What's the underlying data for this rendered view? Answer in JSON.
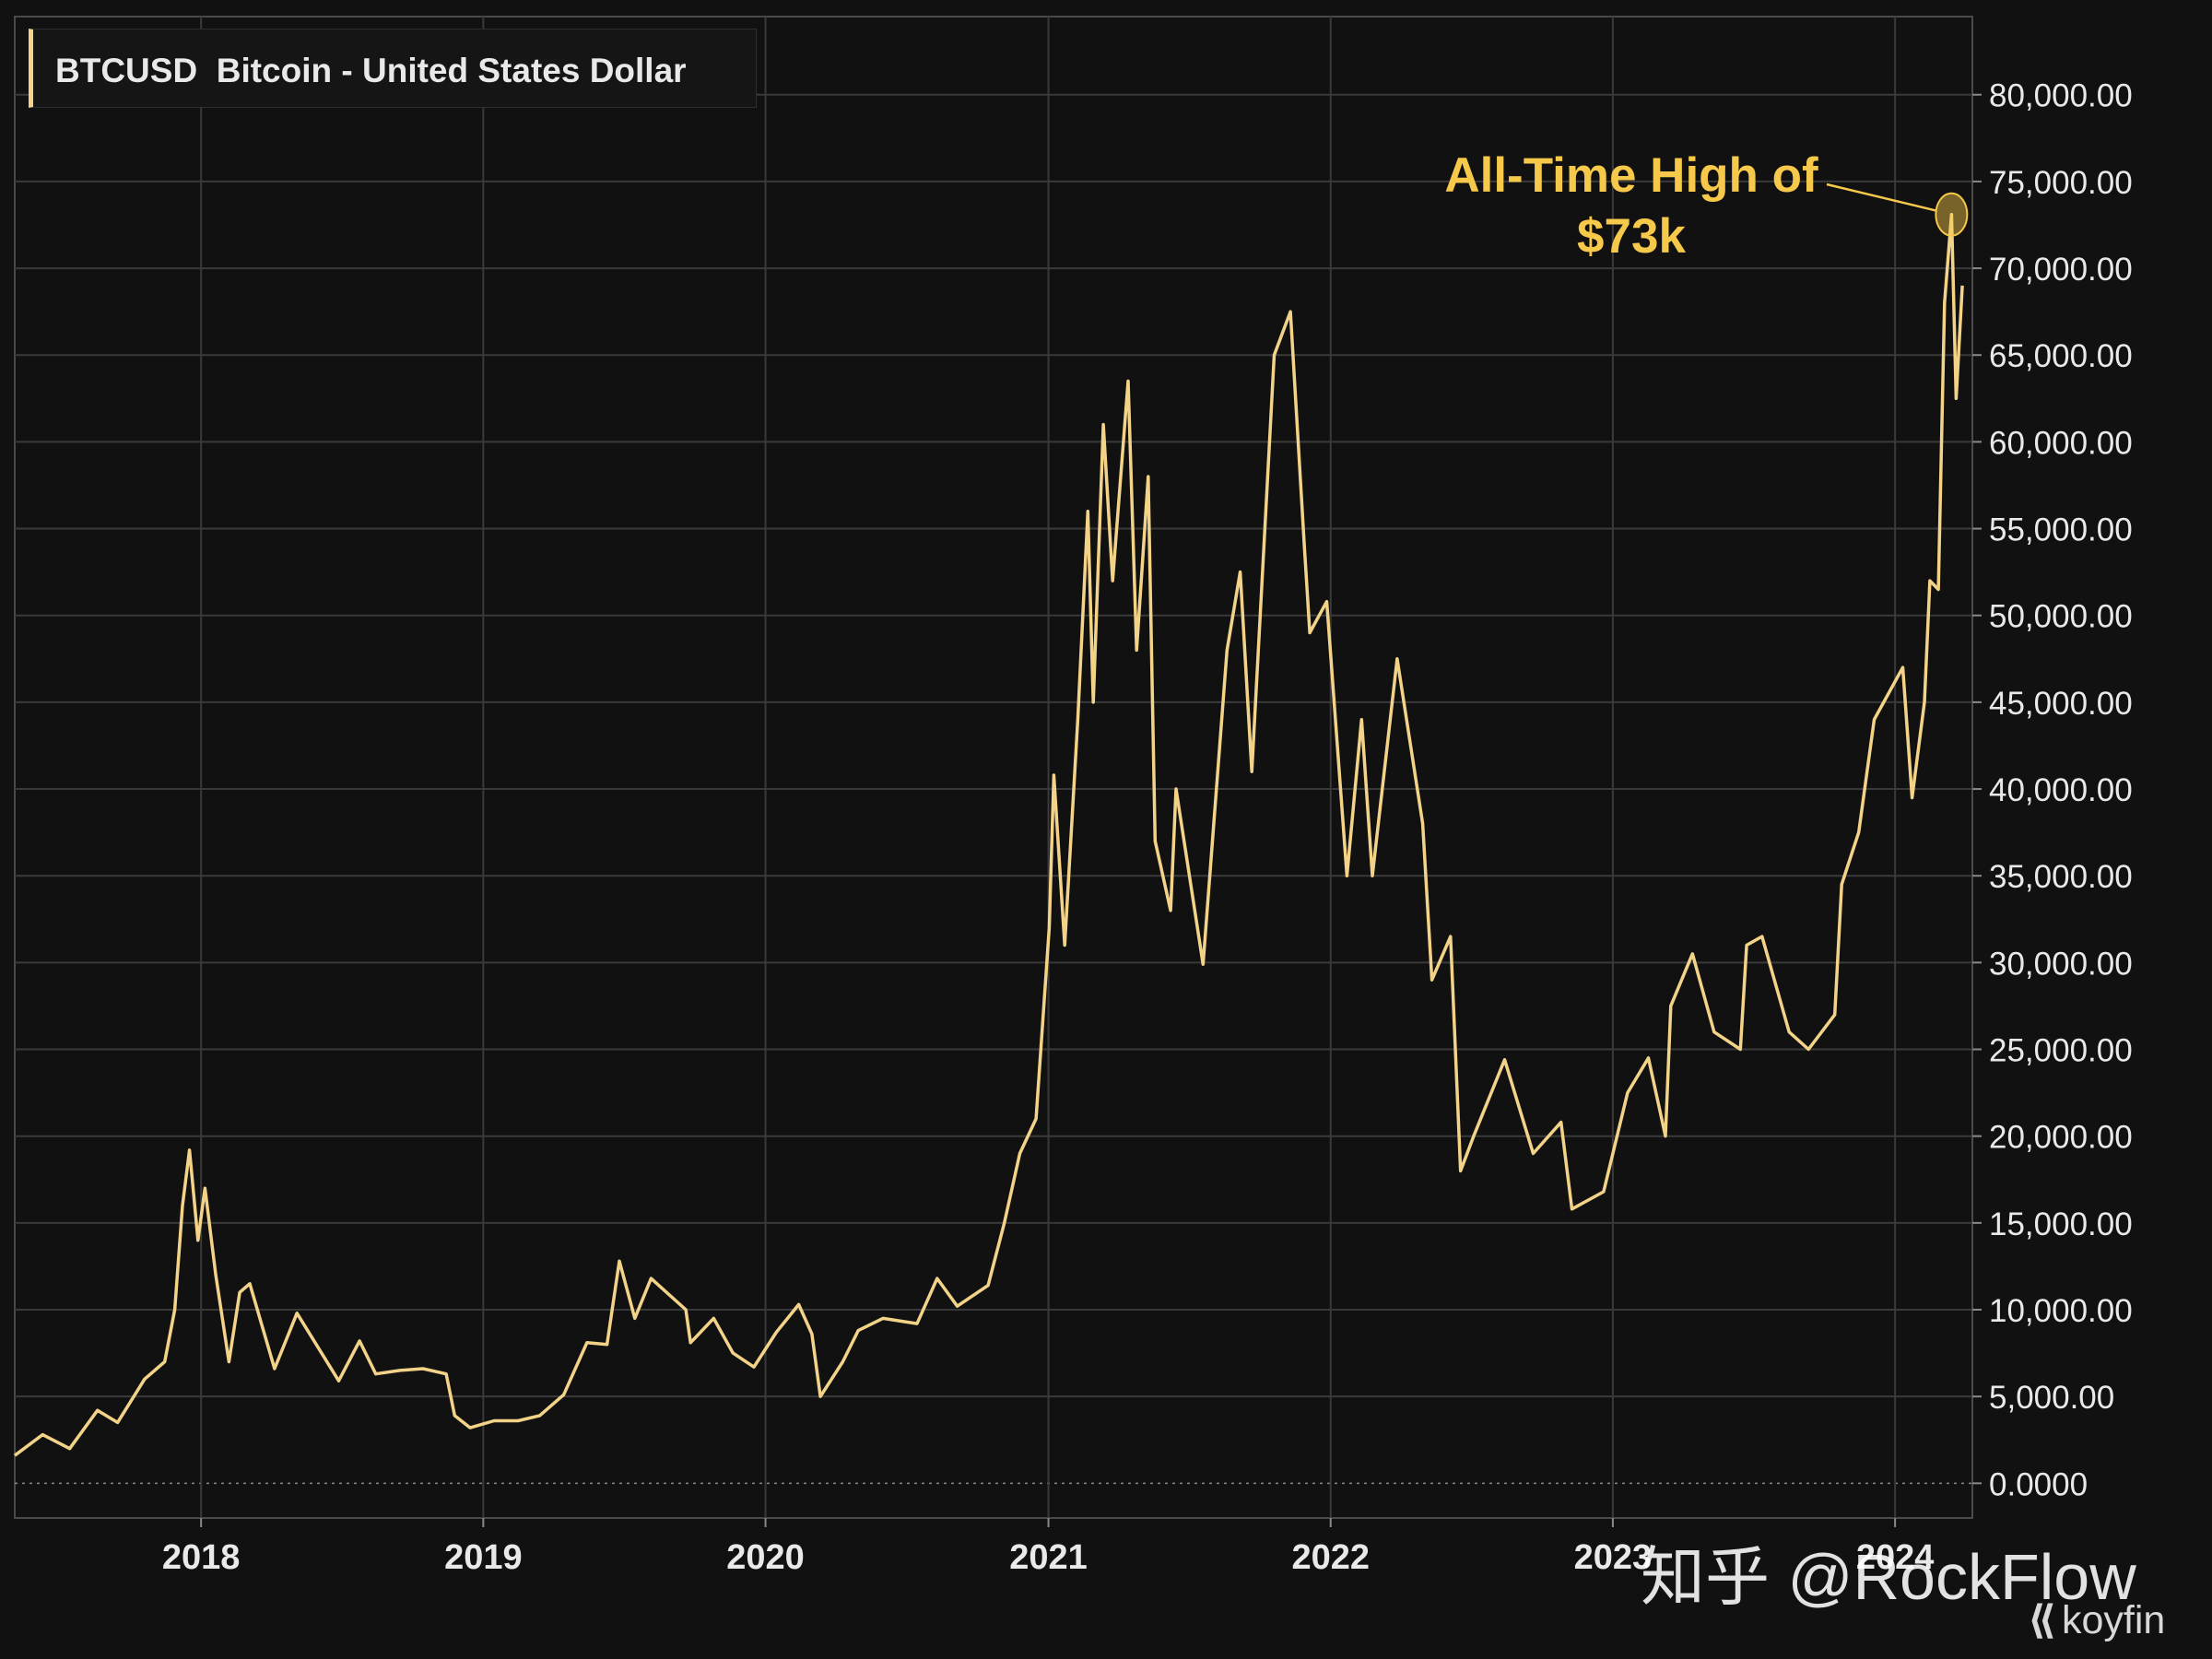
{
  "header": {
    "symbol": "BTCUSD",
    "name": "Bitcoin - United States Dollar"
  },
  "annotation": {
    "line1": "All-Time High of",
    "line2": "$73k",
    "color": "#f6c94a"
  },
  "watermark": "知乎 @RockFlow",
  "brand": {
    "mark": "⟪",
    "name": "koyfin"
  },
  "colors": {
    "background": "#111111",
    "line": "#f2d388",
    "grid": "#3a3a3a",
    "axis_text": "#e9e9e9"
  },
  "chart_data": {
    "type": "line",
    "title": "",
    "xlabel": "",
    "ylabel": "",
    "x_ticks": [
      "2018",
      "2019",
      "2020",
      "2021",
      "2022",
      "2023",
      "2024"
    ],
    "y_ticks": [
      "0.0000",
      "5,000.00",
      "10,000.00",
      "15,000.00",
      "20,000.00",
      "25,000.00",
      "30,000.00",
      "35,000.00",
      "40,000.00",
      "45,000.00",
      "50,000.00",
      "55,000.00",
      "60,000.00",
      "65,000.00",
      "70,000.00",
      "75,000.00",
      "80,000.00"
    ],
    "xlim": [
      "2017-05-05",
      "2024-04-10"
    ],
    "ylim": [
      -2000,
      84500
    ],
    "grid": true,
    "series": [
      {
        "name": "BTCUSD",
        "points": [
          [
            "2017-05-05",
            1600
          ],
          [
            "2017-06-10",
            2800
          ],
          [
            "2017-07-15",
            2000
          ],
          [
            "2017-08-20",
            4200
          ],
          [
            "2017-09-15",
            3500
          ],
          [
            "2017-10-20",
            6000
          ],
          [
            "2017-11-15",
            7000
          ],
          [
            "2017-11-28",
            10000
          ],
          [
            "2017-12-08",
            16000
          ],
          [
            "2017-12-17",
            19200
          ],
          [
            "2017-12-28",
            14000
          ],
          [
            "2018-01-06",
            17000
          ],
          [
            "2018-01-20",
            12000
          ],
          [
            "2018-02-06",
            7000
          ],
          [
            "2018-02-20",
            11000
          ],
          [
            "2018-03-05",
            11500
          ],
          [
            "2018-04-06",
            6600
          ],
          [
            "2018-05-05",
            9800
          ],
          [
            "2018-06-28",
            5900
          ],
          [
            "2018-07-25",
            8200
          ],
          [
            "2018-08-15",
            6300
          ],
          [
            "2018-09-15",
            6500
          ],
          [
            "2018-10-15",
            6600
          ],
          [
            "2018-11-14",
            6300
          ],
          [
            "2018-11-25",
            3900
          ],
          [
            "2018-12-15",
            3200
          ],
          [
            "2019-01-15",
            3600
          ],
          [
            "2019-02-15",
            3600
          ],
          [
            "2019-03-15",
            3900
          ],
          [
            "2019-04-15",
            5100
          ],
          [
            "2019-05-15",
            8100
          ],
          [
            "2019-06-10",
            8000
          ],
          [
            "2019-06-26",
            12800
          ],
          [
            "2019-07-16",
            9500
          ],
          [
            "2019-08-06",
            11800
          ],
          [
            "2019-09-20",
            10000
          ],
          [
            "2019-09-26",
            8100
          ],
          [
            "2019-10-26",
            9500
          ],
          [
            "2019-11-20",
            7500
          ],
          [
            "2019-12-17",
            6700
          ],
          [
            "2020-01-15",
            8700
          ],
          [
            "2020-02-13",
            10300
          ],
          [
            "2020-03-01",
            8600
          ],
          [
            "2020-03-12",
            5000
          ],
          [
            "2020-04-10",
            7000
          ],
          [
            "2020-04-30",
            8800
          ],
          [
            "2020-06-01",
            9500
          ],
          [
            "2020-07-15",
            9200
          ],
          [
            "2020-08-10",
            11800
          ],
          [
            "2020-09-05",
            10200
          ],
          [
            "2020-10-15",
            11400
          ],
          [
            "2020-11-05",
            15000
          ],
          [
            "2020-11-25",
            19000
          ],
          [
            "2020-12-16",
            21000
          ],
          [
            "2021-01-02",
            32000
          ],
          [
            "2021-01-08",
            40800
          ],
          [
            "2021-01-22",
            31000
          ],
          [
            "2021-02-08",
            44000
          ],
          [
            "2021-02-21",
            56000
          ],
          [
            "2021-02-28",
            45000
          ],
          [
            "2021-03-13",
            61000
          ],
          [
            "2021-03-25",
            52000
          ],
          [
            "2021-04-14",
            63500
          ],
          [
            "2021-04-25",
            48000
          ],
          [
            "2021-05-10",
            58000
          ],
          [
            "2021-05-19",
            37000
          ],
          [
            "2021-06-08",
            33000
          ],
          [
            "2021-06-15",
            40000
          ],
          [
            "2021-07-20",
            29900
          ],
          [
            "2021-08-20",
            48000
          ],
          [
            "2021-09-06",
            52500
          ],
          [
            "2021-09-21",
            41000
          ],
          [
            "2021-10-20",
            65000
          ],
          [
            "2021-11-10",
            67500
          ],
          [
            "2021-11-28",
            54000
          ],
          [
            "2021-12-05",
            49000
          ],
          [
            "2021-12-27",
            50800
          ],
          [
            "2022-01-22",
            35000
          ],
          [
            "2022-02-10",
            44000
          ],
          [
            "2022-02-24",
            35000
          ],
          [
            "2022-03-28",
            47500
          ],
          [
            "2022-04-30",
            38000
          ],
          [
            "2022-05-12",
            29000
          ],
          [
            "2022-06-05",
            31500
          ],
          [
            "2022-06-18",
            18000
          ],
          [
            "2022-07-05",
            20000
          ],
          [
            "2022-08-14",
            24400
          ],
          [
            "2022-09-20",
            19000
          ],
          [
            "2022-10-26",
            20800
          ],
          [
            "2022-11-09",
            15800
          ],
          [
            "2022-12-20",
            16800
          ],
          [
            "2023-01-20",
            22500
          ],
          [
            "2023-02-16",
            24500
          ],
          [
            "2023-03-10",
            20000
          ],
          [
            "2023-03-17",
            27500
          ],
          [
            "2023-04-14",
            30500
          ],
          [
            "2023-05-12",
            26000
          ],
          [
            "2023-06-15",
            25000
          ],
          [
            "2023-06-23",
            31000
          ],
          [
            "2023-07-13",
            31500
          ],
          [
            "2023-08-17",
            26000
          ],
          [
            "2023-09-11",
            25000
          ],
          [
            "2023-10-15",
            27000
          ],
          [
            "2023-10-24",
            34500
          ],
          [
            "2023-11-15",
            37500
          ],
          [
            "2023-12-05",
            44000
          ],
          [
            "2024-01-11",
            47000
          ],
          [
            "2024-01-23",
            39500
          ],
          [
            "2024-02-08",
            45000
          ],
          [
            "2024-02-15",
            52000
          ],
          [
            "2024-02-26",
            51500
          ],
          [
            "2024-03-05",
            68000
          ],
          [
            "2024-03-14",
            73100
          ],
          [
            "2024-03-20",
            62500
          ],
          [
            "2024-03-28",
            69000
          ]
        ]
      }
    ],
    "annotation": {
      "text": "All-Time High of $73k",
      "x": "2024-03-14",
      "y": 73100
    }
  }
}
